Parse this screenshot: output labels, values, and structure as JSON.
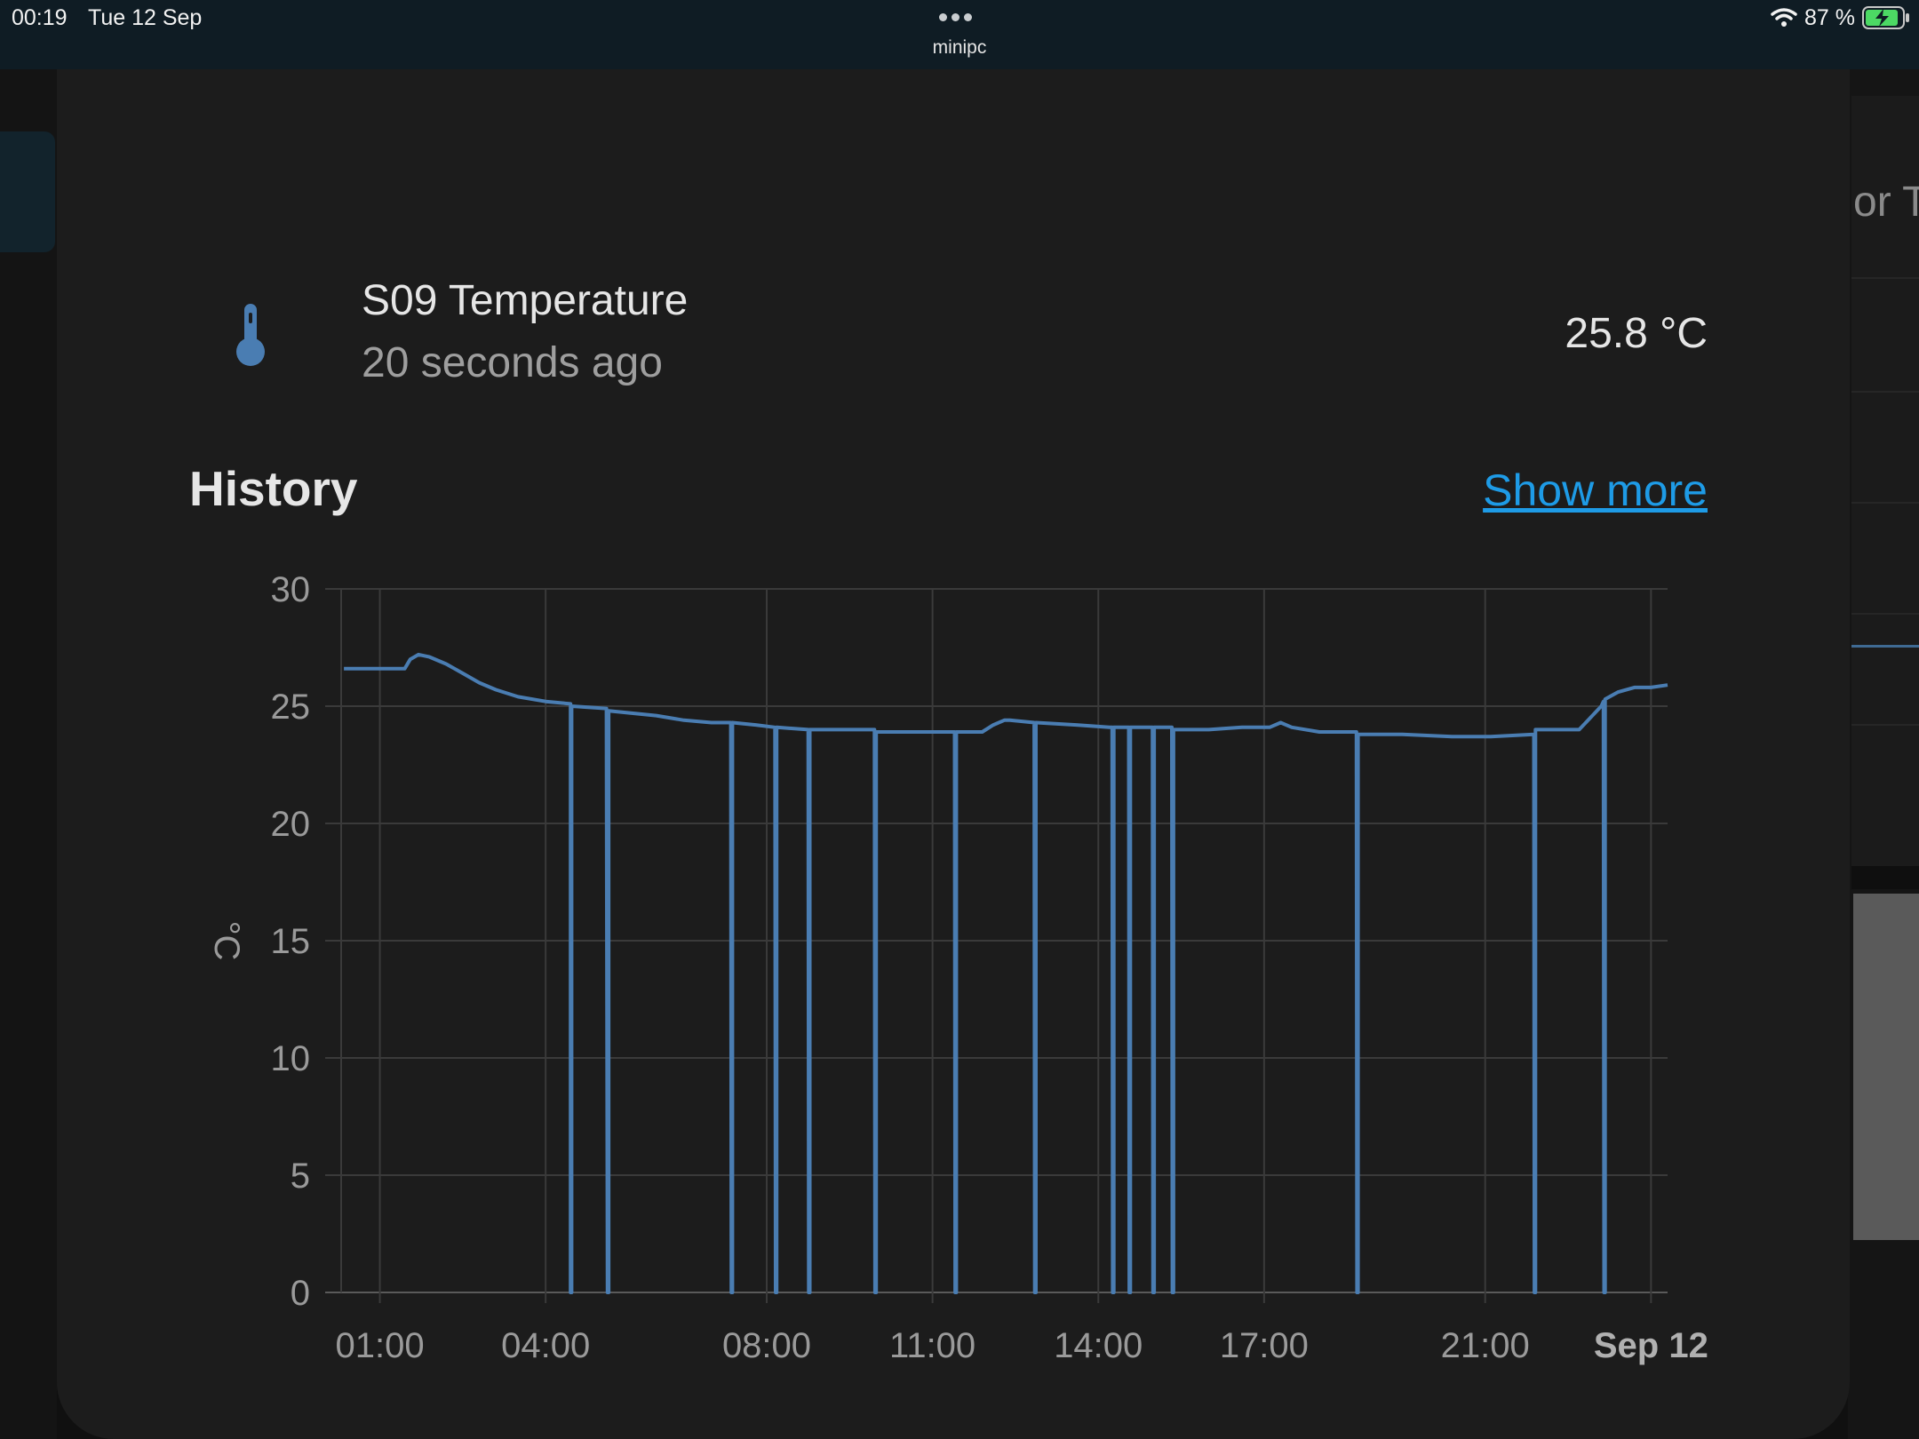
{
  "status_bar": {
    "time": "00:19",
    "date": "Tue 12 Sep",
    "host": "minipc",
    "battery": "87 %",
    "wifi_icon": "wifi-icon",
    "battery_icon": "battery-charging-icon"
  },
  "background": {
    "right_partial_text": "or T"
  },
  "entity": {
    "icon": "thermometer-icon",
    "name": "S09 Temperature",
    "last_updated": "20 seconds ago",
    "state": "25.8 °C"
  },
  "history": {
    "title": "History",
    "show_more": "Show more"
  },
  "colors": {
    "line": "#4a7db2",
    "link": "#1e9be6",
    "card_bg": "#1c1c1c"
  },
  "chart_data": {
    "type": "line",
    "ylabel": "°C",
    "ylim": [
      0,
      30
    ],
    "yticks": [
      0,
      5,
      10,
      15,
      20,
      25,
      30
    ],
    "xlim": [
      -0.7,
      23.3
    ],
    "xticks": [
      {
        "label": "01:00",
        "x": 0,
        "bold": false
      },
      {
        "label": "04:00",
        "x": 3,
        "bold": false
      },
      {
        "label": "08:00",
        "x": 7,
        "bold": false
      },
      {
        "label": "11:00",
        "x": 10,
        "bold": false
      },
      {
        "label": "14:00",
        "x": 13,
        "bold": false
      },
      {
        "label": "17:00",
        "x": 16,
        "bold": false
      },
      {
        "label": "21:00",
        "x": 20,
        "bold": false
      },
      {
        "label": "Sep 12",
        "x": 23,
        "bold": true
      }
    ],
    "grid": true,
    "series": [
      {
        "color": "#4a7db2",
        "points": [
          [
            -0.65,
            26.6
          ],
          [
            0.45,
            26.6
          ],
          [
            0.55,
            27.0
          ],
          [
            0.7,
            27.2
          ],
          [
            0.9,
            27.1
          ],
          [
            1.2,
            26.8
          ],
          [
            1.5,
            26.4
          ],
          [
            1.8,
            26.0
          ],
          [
            2.1,
            25.7
          ],
          [
            2.5,
            25.4
          ],
          [
            3.0,
            25.2
          ],
          [
            3.45,
            25.1
          ],
          [
            3.45,
            0
          ],
          [
            3.47,
            0
          ],
          [
            3.47,
            25.0
          ],
          [
            4.1,
            24.9
          ],
          [
            4.12,
            0
          ],
          [
            4.14,
            0
          ],
          [
            4.14,
            24.8
          ],
          [
            5.0,
            24.6
          ],
          [
            5.5,
            24.4
          ],
          [
            6.0,
            24.3
          ],
          [
            6.35,
            24.3
          ],
          [
            6.36,
            0
          ],
          [
            6.38,
            0
          ],
          [
            6.38,
            24.3
          ],
          [
            6.8,
            24.2
          ],
          [
            7.15,
            24.1
          ],
          [
            7.16,
            0
          ],
          [
            7.18,
            0
          ],
          [
            7.18,
            24.1
          ],
          [
            7.75,
            24.0
          ],
          [
            7.76,
            0
          ],
          [
            7.78,
            0
          ],
          [
            7.78,
            24.0
          ],
          [
            8.95,
            24.0
          ],
          [
            8.96,
            0
          ],
          [
            8.98,
            0
          ],
          [
            8.98,
            23.9
          ],
          [
            10.0,
            23.9
          ],
          [
            10.4,
            23.9
          ],
          [
            10.41,
            0
          ],
          [
            10.43,
            0
          ],
          [
            10.43,
            23.9
          ],
          [
            10.6,
            23.9
          ],
          [
            10.9,
            23.9
          ],
          [
            11.1,
            24.2
          ],
          [
            11.3,
            24.4
          ],
          [
            11.4,
            24.4
          ],
          [
            11.84,
            24.3
          ],
          [
            11.85,
            0
          ],
          [
            11.87,
            0
          ],
          [
            11.87,
            24.3
          ],
          [
            12.6,
            24.2
          ],
          [
            13.2,
            24.1
          ],
          [
            13.25,
            24.1
          ],
          [
            13.26,
            0
          ],
          [
            13.28,
            0
          ],
          [
            13.28,
            24.1
          ],
          [
            13.55,
            24.1
          ],
          [
            13.56,
            0
          ],
          [
            13.58,
            0
          ],
          [
            13.58,
            24.1
          ],
          [
            13.98,
            24.1
          ],
          [
            13.99,
            0
          ],
          [
            14.01,
            0
          ],
          [
            14.01,
            24.1
          ],
          [
            14.33,
            24.1
          ],
          [
            14.34,
            0
          ],
          [
            14.36,
            0
          ],
          [
            14.36,
            24.0
          ],
          [
            15.0,
            24.0
          ],
          [
            15.6,
            24.1
          ],
          [
            16.1,
            24.1
          ],
          [
            16.3,
            24.3
          ],
          [
            16.5,
            24.1
          ],
          [
            17.0,
            23.9
          ],
          [
            17.67,
            23.9
          ],
          [
            17.68,
            0
          ],
          [
            17.7,
            0
          ],
          [
            17.7,
            23.8
          ],
          [
            18.5,
            23.8
          ],
          [
            19.4,
            23.7
          ],
          [
            20.1,
            23.7
          ],
          [
            20.88,
            23.8
          ],
          [
            20.89,
            0
          ],
          [
            20.91,
            0
          ],
          [
            20.91,
            24.0
          ],
          [
            21.3,
            24.0
          ],
          [
            21.7,
            24.0
          ],
          [
            21.9,
            24.5
          ],
          [
            22.1,
            25.0
          ],
          [
            22.14,
            25.2
          ],
          [
            22.15,
            0
          ],
          [
            22.17,
            0
          ],
          [
            22.17,
            25.3
          ],
          [
            22.4,
            25.6
          ],
          [
            22.7,
            25.8
          ],
          [
            23.0,
            25.8
          ],
          [
            23.3,
            25.9
          ]
        ]
      }
    ]
  }
}
